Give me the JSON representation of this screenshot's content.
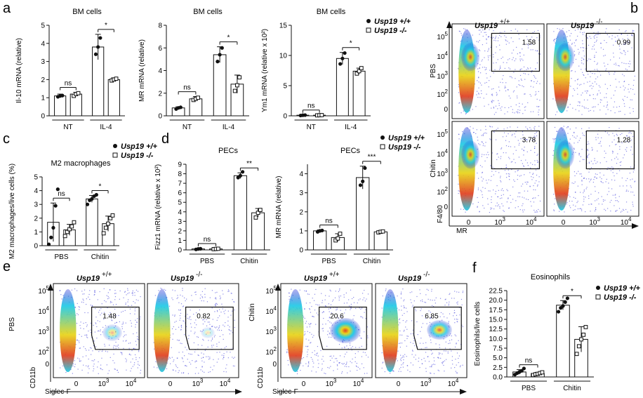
{
  "panels": {
    "a": "a",
    "b": "b",
    "c": "c",
    "d": "d",
    "e": "e",
    "f": "f"
  },
  "colors": {
    "bar_stroke": "#111111",
    "dot": "#111111",
    "flow_low": "#2b2bd6",
    "flow_mid": "#19c9e6",
    "flow_high": "#e8d312",
    "flow_peak": "#e03a1a"
  },
  "legend": {
    "wt": "Usp19 +/+",
    "ko": "Usp19 -/-"
  },
  "chart_data": [
    {
      "id": "a1",
      "type": "bar",
      "title": "BM cells",
      "ylabel": "Il-10 mRNA (relative)",
      "ylim": [
        0,
        5
      ],
      "yticks": [
        "0",
        "1",
        "2",
        "3",
        "4",
        "5"
      ],
      "categories": [
        "NT",
        "IL-4"
      ],
      "series": [
        {
          "name": "Usp19 +/+",
          "values": [
            1.1,
            3.8
          ],
          "err": [
            0.1,
            0.7
          ],
          "points": [
            [
              1.05,
              1.1,
              1.12
            ],
            [
              3.4,
              3.8,
              4.3
            ]
          ]
        },
        {
          "name": "Usp19 -/-",
          "values": [
            1.2,
            2.0
          ],
          "err": [
            0.1,
            0.1
          ],
          "points": [
            [
              1.1,
              1.2,
              1.25
            ],
            [
              1.95,
              2.0,
              2.05
            ]
          ]
        }
      ],
      "sig": [
        "ns",
        "*"
      ]
    },
    {
      "id": "a2",
      "type": "bar",
      "title": "BM cells",
      "ylabel": "MR mRNA (relative)",
      "ylim": [
        0,
        8
      ],
      "yticks": [
        "0",
        "2",
        "4",
        "6",
        "8"
      ],
      "categories": [
        "NT",
        "IL-4"
      ],
      "series": [
        {
          "name": "Usp19 +/+",
          "values": [
            0.7,
            5.4
          ],
          "err": [
            0.1,
            0.7
          ],
          "points": [
            [
              0.6,
              0.7,
              0.75
            ],
            [
              4.8,
              5.4,
              6.0
            ]
          ]
        },
        {
          "name": "Usp19 -/-",
          "values": [
            1.5,
            2.8
          ],
          "err": [
            0.2,
            0.8
          ],
          "points": [
            [
              1.4,
              1.5,
              1.6
            ],
            [
              2.2,
              2.7,
              3.4
            ]
          ]
        }
      ],
      "sig": [
        "ns",
        "*"
      ]
    },
    {
      "id": "a3",
      "type": "bar",
      "title": "BM cells",
      "ylabel": "Ym1 mRNA (relative x 10^2)",
      "ylim": [
        0,
        15
      ],
      "yticks": [
        "0",
        "5",
        "10",
        "15"
      ],
      "categories": [
        "NT",
        "IL-4"
      ],
      "series": [
        {
          "name": "Usp19 +/+",
          "values": [
            0.1,
            9.5
          ],
          "err": [
            0.05,
            1.0
          ],
          "points": [
            [
              0.05,
              0.1,
              0.12
            ],
            [
              8.6,
              9.5,
              10.4
            ]
          ]
        },
        {
          "name": "Usp19 -/-",
          "values": [
            0.1,
            7.4
          ],
          "err": [
            0.05,
            0.5
          ],
          "points": [
            [
              0.08,
              0.1,
              0.12
            ],
            [
              7.0,
              7.4,
              7.9
            ]
          ]
        }
      ],
      "sig": [
        "ns",
        "*"
      ]
    },
    {
      "id": "c",
      "type": "bar",
      "title": "M2 macrophages",
      "ylabel": "M2 macrophages/live cells (%)",
      "ylim": [
        0,
        5
      ],
      "yticks": [
        "0",
        "1",
        "2",
        "3",
        "4",
        "5"
      ],
      "categories": [
        "PBS",
        "Chitin"
      ],
      "series": [
        {
          "name": "Usp19 +/+",
          "values": [
            1.7,
            3.4
          ],
          "err": [
            1.4,
            0.25
          ],
          "points": [
            [
              0.1,
              0.6,
              1.3,
              2.9,
              4.1
            ],
            [
              3.0,
              3.3,
              3.4,
              3.6,
              3.7
            ]
          ]
        },
        {
          "name": "Usp19 -/-",
          "values": [
            1.15,
            1.6
          ],
          "err": [
            0.4,
            0.55
          ],
          "points": [
            [
              0.7,
              1.0,
              1.2,
              1.4,
              1.7
            ],
            [
              0.9,
              1.3,
              1.6,
              2.0,
              2.2
            ]
          ]
        }
      ],
      "sig": [
        "ns",
        "*"
      ]
    },
    {
      "id": "d1",
      "type": "bar",
      "title": "PECs",
      "ylabel": "Fizz1 mRNA (relative x 10^2)",
      "ylim": [
        0,
        9
      ],
      "yticks": [
        "0",
        "1",
        "2",
        "3",
        "4",
        "5",
        "6",
        "7",
        "8",
        "9"
      ],
      "categories": [
        "PBS",
        "Chitin"
      ],
      "series": [
        {
          "name": "Usp19 +/+",
          "values": [
            0.1,
            7.8
          ],
          "err": [
            0.05,
            0.3
          ],
          "points": [
            [
              0.05,
              0.1,
              0.12
            ],
            [
              7.6,
              7.8,
              8.2
            ]
          ]
        },
        {
          "name": "Usp19 -/-",
          "values": [
            0.1,
            3.9
          ],
          "err": [
            0.05,
            0.45
          ],
          "points": [
            [
              0.08,
              0.1,
              0.12
            ],
            [
              3.4,
              3.9,
              4.2
            ]
          ]
        }
      ],
      "sig": [
        "ns",
        "**"
      ]
    },
    {
      "id": "d2",
      "type": "bar",
      "title": "PECs",
      "ylabel": "MR mRNA (relative)",
      "ylim": [
        0,
        4.5
      ],
      "yticks": [
        "0",
        "1",
        "2",
        "3",
        "4"
      ],
      "categories": [
        "PBS",
        "Chitin"
      ],
      "series": [
        {
          "name": "Usp19 +/+",
          "values": [
            1.0,
            3.8
          ],
          "err": [
            0.05,
            0.6
          ],
          "points": [
            [
              0.95,
              1.0,
              1.02
            ],
            [
              3.4,
              3.6,
              4.3
            ]
          ]
        },
        {
          "name": "Usp19 -/-",
          "values": [
            0.65,
            0.95
          ],
          "err": [
            0.2,
            0.05
          ],
          "points": [
            [
              0.5,
              0.6,
              0.85
            ],
            [
              0.92,
              0.95,
              0.97
            ]
          ]
        }
      ],
      "sig": [
        "ns",
        "***"
      ]
    },
    {
      "id": "f",
      "type": "bar",
      "title": "Eosinophils",
      "ylabel": "Eosinophils/live cells",
      "ylim": [
        0,
        22.5
      ],
      "yticks": [
        "0.0",
        "2.5",
        "5.0",
        "7.5",
        "10.0",
        "12.5",
        "15.0",
        "17.5",
        "20.0",
        "22.5"
      ],
      "categories": [
        "PBS",
        "Chitin"
      ],
      "series": [
        {
          "name": "Usp19 +/+",
          "values": [
            1.3,
            18.7
          ],
          "err": [
            0.6,
            1.2
          ],
          "points": [
            [
              0.6,
              1.0,
              1.3,
              1.6,
              2.2
            ],
            [
              17.0,
              18.0,
              18.5,
              19.5,
              20.5
            ]
          ]
        },
        {
          "name": "Usp19 -/-",
          "values": [
            0.9,
            9.8
          ],
          "err": [
            0.3,
            3.3
          ],
          "points": [
            [
              0.5,
              0.7,
              0.8,
              1.0,
              1.2
            ],
            [
              6.0,
              8.0,
              9.8,
              11.0,
              13.0
            ]
          ]
        }
      ],
      "sig": [
        "ns",
        "*"
      ]
    }
  ],
  "flow_b": {
    "cols": [
      "Usp19 +/+",
      "Usp19 -/-"
    ],
    "rows": [
      "PBS",
      "Chitin"
    ],
    "values": [
      [
        "1.58",
        "0.99"
      ],
      [
        "3.78",
        "1.28"
      ]
    ],
    "ylabel": "F4/80",
    "xlabel": "MR",
    "yticks": [
      "10^5",
      "10^4",
      "10^3",
      "10^2",
      "0"
    ],
    "xticks": [
      "0",
      "10^3",
      "10^4"
    ]
  },
  "flow_e": {
    "cols": [
      "Usp19 +/+",
      "Usp19 -/-",
      "Usp19 +/+",
      "Usp19 -/-"
    ],
    "rows": [
      "PBS",
      "Chitin"
    ],
    "values": [
      "1.48",
      "0.82",
      "20.6",
      "6.85"
    ],
    "ylabel": "CD11b",
    "xlabel": "Siglec-F",
    "yticks": [
      "10^5",
      "10^4",
      "10^3",
      "10^2",
      "0"
    ],
    "xticks": [
      "0",
      "10^3",
      "10^4"
    ]
  }
}
